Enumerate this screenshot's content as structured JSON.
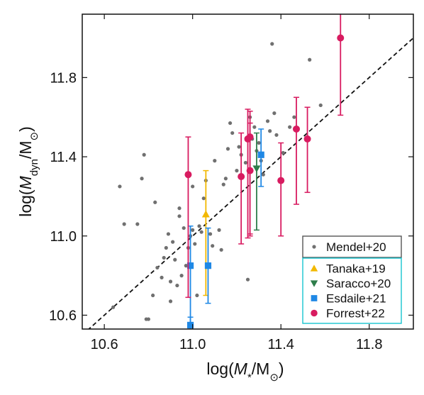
{
  "chart_data": {
    "type": "scatter",
    "title": "",
    "xlabel": {
      "prefix": "log(",
      "var": "M",
      "sub": "*",
      "mid": "/M",
      "sun": "⊙",
      "suffix": ")"
    },
    "ylabel": {
      "prefix": "log(",
      "var": "M",
      "sub": "dyn",
      "mid": "/M",
      "sun": "⊙",
      "suffix": ")"
    },
    "xlim": [
      10.5,
      12.0
    ],
    "ylim": [
      10.53,
      12.12
    ],
    "xticks": [
      10.6,
      11.0,
      11.4,
      11.8
    ],
    "yticks": [
      10.6,
      11.0,
      11.4,
      11.8
    ],
    "xtick_labels": [
      "10.6",
      "11.0",
      "11.4",
      "11.8"
    ],
    "ytick_labels": [
      "10.6",
      "11.0",
      "11.4",
      "11.8"
    ],
    "grid": false,
    "one_to_one_line": {
      "style": "dashed",
      "color": "#111111"
    },
    "legend_placement": "bottom-right",
    "series": [
      {
        "name": "Mendel+20",
        "marker": "circle-small",
        "color": "#707070",
        "points": [
          [
            10.64,
            10.64
          ],
          [
            10.67,
            11.25
          ],
          [
            10.69,
            11.06
          ],
          [
            10.75,
            11.06
          ],
          [
            10.77,
            11.29
          ],
          [
            10.78,
            11.41
          ],
          [
            10.79,
            10.58
          ],
          [
            10.8,
            10.58
          ],
          [
            10.82,
            10.7
          ],
          [
            10.83,
            11.17
          ],
          [
            10.84,
            10.84
          ],
          [
            10.86,
            10.79
          ],
          [
            10.87,
            10.89
          ],
          [
            10.88,
            10.94
          ],
          [
            10.89,
            11.01
          ],
          [
            10.9,
            10.77
          ],
          [
            10.9,
            10.67
          ],
          [
            10.91,
            10.97
          ],
          [
            10.92,
            10.88
          ],
          [
            10.93,
            10.75
          ],
          [
            10.94,
            11.1
          ],
          [
            10.94,
            11.14
          ],
          [
            10.95,
            10.8
          ],
          [
            10.96,
            11.04
          ],
          [
            10.97,
            10.85
          ],
          [
            10.98,
            10.94
          ],
          [
            10.99,
            11.0
          ],
          [
            11.0,
            11.03
          ],
          [
            11.0,
            11.25
          ],
          [
            11.01,
            10.96
          ],
          [
            11.02,
            10.7
          ],
          [
            11.03,
            11.05
          ],
          [
            11.04,
            11.02
          ],
          [
            11.05,
            11.19
          ],
          [
            11.06,
            11.28
          ],
          [
            11.08,
            11.01
          ],
          [
            11.09,
            10.95
          ],
          [
            11.1,
            11.38
          ],
          [
            11.12,
            11.03
          ],
          [
            11.13,
            10.93
          ],
          [
            11.14,
            11.26
          ],
          [
            11.15,
            11.29
          ],
          [
            11.16,
            11.44
          ],
          [
            11.17,
            11.57
          ],
          [
            11.18,
            11.52
          ],
          [
            11.2,
            11.33
          ],
          [
            11.21,
            11.45
          ],
          [
            11.22,
            11.41
          ],
          [
            11.24,
            11.37
          ],
          [
            11.25,
            10.78
          ],
          [
            11.26,
            11.6
          ],
          [
            11.27,
            11.49
          ],
          [
            11.28,
            11.55
          ],
          [
            11.29,
            11.43
          ],
          [
            11.3,
            11.47
          ],
          [
            11.31,
            11.38
          ],
          [
            11.32,
            11.31
          ],
          [
            11.34,
            11.58
          ],
          [
            11.35,
            11.53
          ],
          [
            11.36,
            11.97
          ],
          [
            11.37,
            11.62
          ],
          [
            11.38,
            11.51
          ],
          [
            11.41,
            11.42
          ],
          [
            11.44,
            11.55
          ],
          [
            11.46,
            11.6
          ],
          [
            11.53,
            11.89
          ],
          [
            11.58,
            11.66
          ]
        ]
      },
      {
        "name": "Tanaka+19",
        "marker": "triangle-up",
        "color": "#f2b800",
        "points": [
          {
            "x": 11.06,
            "y": 11.11,
            "ylo": 10.7,
            "yhi": 11.33
          }
        ]
      },
      {
        "name": "Saracco+20",
        "marker": "triangle-down",
        "color": "#2e7d4a",
        "points": [
          {
            "x": 11.29,
            "y": 11.34,
            "ylo": 11.03,
            "yhi": 11.52
          }
        ]
      },
      {
        "name": "Esdaile+21",
        "marker": "square",
        "color": "#1f88e5",
        "points": [
          {
            "x": 10.99,
            "y": 10.85,
            "ylo": 10.55,
            "yhi": 11.05
          },
          {
            "x": 10.99,
            "y": 10.55,
            "ylo": 10.53,
            "yhi": 10.59
          },
          {
            "x": 11.07,
            "y": 10.85,
            "ylo": 10.66,
            "yhi": 11.04
          },
          {
            "x": 11.31,
            "y": 11.41,
            "ylo": 11.25,
            "yhi": 11.54
          }
        ]
      },
      {
        "name": "Forrest+22",
        "marker": "circle",
        "color": "#d81b60",
        "points": [
          {
            "x": 10.98,
            "y": 11.31,
            "ylo": 10.69,
            "yhi": 11.5
          },
          {
            "x": 11.22,
            "y": 11.3,
            "ylo": 10.96,
            "yhi": 11.52
          },
          {
            "x": 11.25,
            "y": 11.49,
            "ylo": 10.99,
            "yhi": 11.64
          },
          {
            "x": 11.26,
            "y": 11.33,
            "ylo": 11.01,
            "yhi": 11.57
          },
          {
            "x": 11.26,
            "y": 11.5,
            "ylo": 11.0,
            "yhi": 11.63
          },
          {
            "x": 11.4,
            "y": 11.28,
            "ylo": 11.0,
            "yhi": 11.47
          },
          {
            "x": 11.47,
            "y": 11.54,
            "ylo": 11.16,
            "yhi": 11.7
          },
          {
            "x": 11.52,
            "y": 11.49,
            "ylo": 11.22,
            "yhi": 11.65
          },
          {
            "x": 11.67,
            "y": 12.0,
            "ylo": 11.61,
            "yhi": 12.15
          }
        ]
      }
    ],
    "legend": {
      "box1": {
        "entries": [
          "Mendel+20"
        ],
        "border_color": "#555555"
      },
      "box2": {
        "entries": [
          "Tanaka+19",
          "Saracco+20",
          "Esdaile+21",
          "Forrest+22"
        ],
        "border_color": "#17c5d0"
      }
    }
  }
}
